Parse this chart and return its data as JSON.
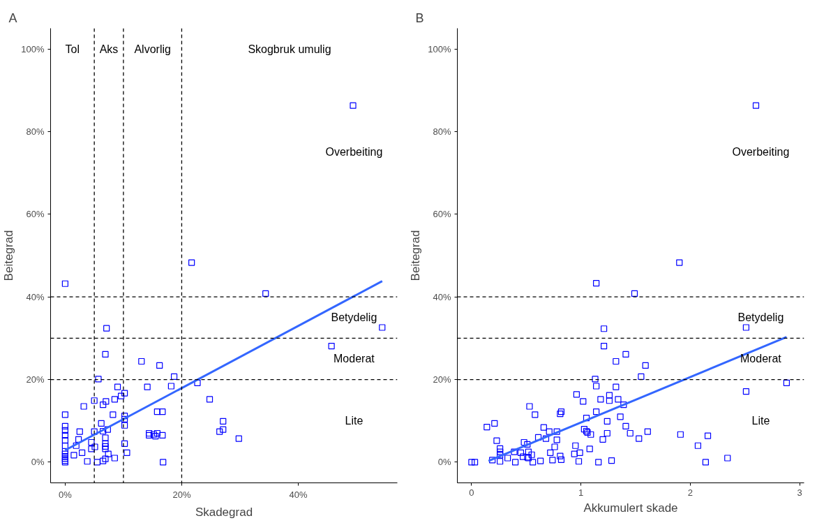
{
  "chart_data": [
    {
      "type": "scatter",
      "title": "A",
      "xlabel": "Skadegrad",
      "ylabel": "Beitegrad",
      "grid": false,
      "xlim": [
        -2.5,
        57
      ],
      "ylim": [
        -5,
        105
      ],
      "xticks": [
        {
          "value": 0,
          "label": "0%"
        },
        {
          "value": 20,
          "label": "20%"
        },
        {
          "value": 40,
          "label": "40%"
        }
      ],
      "yticks": [
        {
          "value": 0,
          "label": "0%"
        },
        {
          "value": 20,
          "label": "20%"
        },
        {
          "value": 40,
          "label": "40%"
        },
        {
          "value": 60,
          "label": "60%"
        },
        {
          "value": 80,
          "label": "80%"
        },
        {
          "value": 100,
          "label": "100%"
        }
      ],
      "series": [
        {
          "marker": "square",
          "color": "#0000ff",
          "x": [
            0,
            0,
            0,
            0,
            0,
            0,
            0,
            0,
            0,
            0,
            0,
            0,
            0,
            6.9,
            13.1,
            16.2,
            5.7,
            18.7,
            9.0,
            10.2,
            9.6,
            14.1,
            18.2,
            22.7,
            5.0,
            7.0,
            8.5,
            6.5,
            3.2,
            8.2,
            10.2,
            10.2,
            10.2,
            6.2,
            2.5,
            5.0,
            7.3,
            6.5,
            6.9,
            2.3,
            4.5,
            5.1,
            4.5,
            6.9,
            6.9,
            6.9,
            10.2,
            1.9,
            2.9,
            1.5,
            7.4,
            8.5,
            6.9,
            6.5,
            3.8,
            5.5,
            10.6,
            16.8,
            15.8,
            16.7,
            14.4,
            15.2,
            15.8,
            16.7,
            14.4,
            15.5,
            21.7,
            34.4,
            54.4,
            45.7,
            24.8,
            27.1,
            27.1,
            26.5,
            29.8,
            49.4,
            7.1
          ],
          "values": [
            43.2,
            11.5,
            8.7,
            7.7,
            6.5,
            5.3,
            4.0,
            2.6,
            2.0,
            1.4,
            0.9,
            0.4,
            0,
            26.1,
            24.4,
            23.4,
            20.1,
            20.7,
            18.2,
            16.7,
            16.0,
            18.2,
            18.4,
            19.2,
            14.9,
            14.7,
            15.2,
            13.9,
            13.5,
            11.5,
            11.2,
            10.4,
            8.9,
            9.4,
            7.4,
            7.4,
            7.9,
            7.5,
            5.9,
            5.5,
            4.8,
            3.7,
            3.2,
            4.5,
            3.8,
            3.2,
            4.5,
            4.0,
            2.3,
            1.7,
            2.0,
            1.0,
            0.8,
            0.3,
            0.2,
            0,
            2.3,
            0,
            12.2,
            12.2,
            6.5,
            6.7,
            7.0,
            6.5,
            7.0,
            6.3,
            48.3,
            40.8,
            32.6,
            28.1,
            15.2,
            9.9,
            7.9,
            7.4,
            5.7,
            86.3,
            32.4
          ]
        },
        {
          "type": "line",
          "color": "#3366ff",
          "x": [
            0,
            54.4
          ],
          "values": [
            2.9,
            43.8
          ]
        }
      ],
      "ref_lines": [
        {
          "axis": "x",
          "value": 5,
          "color": "#000000",
          "line_style": "dashed"
        },
        {
          "axis": "x",
          "value": 10,
          "color": "#000000",
          "line_style": "dashed"
        },
        {
          "axis": "x",
          "value": 20,
          "color": "#000000",
          "line_style": "dashed"
        },
        {
          "axis": "y",
          "value": 20,
          "color": "#000000",
          "line_style": "dashed"
        },
        {
          "axis": "y",
          "value": 30,
          "color": "#000000",
          "line_style": "dashed"
        },
        {
          "axis": "y",
          "value": 40,
          "color": "#000000",
          "line_style": "dashed"
        }
      ],
      "annotations": [
        "Tol",
        "Aks",
        "Alvorlig",
        "Skogbruk umulig",
        "Overbeiting",
        "Betydelig",
        "Moderat",
        "Lite"
      ]
    },
    {
      "type": "scatter",
      "title": "B",
      "xlabel": "Akkumulert skade",
      "ylabel": "Beitegrad",
      "grid": false,
      "xlim": [
        -0.13,
        3.04
      ],
      "ylim": [
        -5,
        105
      ],
      "xticks": [
        0,
        1,
        2,
        3
      ],
      "yticks": [
        {
          "value": 0,
          "label": "0%"
        },
        {
          "value": 20,
          "label": "20%"
        },
        {
          "value": 40,
          "label": "40%"
        },
        {
          "value": 60,
          "label": "60%"
        },
        {
          "value": 80,
          "label": "80%"
        },
        {
          "value": 100,
          "label": "100%"
        }
      ],
      "series": [
        {
          "marker": "square",
          "color": "#0000ff",
          "x": [
            1.14,
            1.49,
            1.21,
            1.21,
            1.41,
            1.32,
            1.59,
            1.55,
            1.13,
            1.14,
            1.32,
            0.96,
            1.02,
            1.26,
            1.26,
            1.18,
            1.34,
            1.39,
            1.14,
            1.36,
            1.05,
            1.24,
            0.53,
            0.58,
            0.82,
            0.81,
            0.14,
            0.21,
            0.66,
            1.03,
            1.05,
            1.06,
            1.09,
            1.24,
            1.41,
            1.45,
            1.53,
            1.61,
            1.2,
            0.71,
            0.78,
            0.61,
            0.68,
            0.78,
            0.23,
            0.48,
            0.51,
            0.76,
            0.95,
            0.99,
            1.08,
            0.94,
            0.72,
            0.81,
            0.39,
            0.45,
            0.52,
            0.26,
            0.26,
            0.26,
            0.19,
            0.26,
            0.33,
            0.4,
            0.47,
            0.52,
            0.56,
            0.63,
            0.74,
            0.82,
            0.98,
            1.16,
            1.28,
            0.0,
            0.03,
            0.55,
            0.51,
            2.51,
            2.88,
            2.51,
            1.91,
            2.16,
            2.07,
            2.14,
            2.34,
            2.6,
            1.9
          ],
          "values": [
            43.3,
            40.8,
            32.3,
            28.1,
            26.1,
            24.4,
            23.4,
            20.7,
            20.1,
            18.4,
            18.2,
            16.4,
            14.7,
            16.2,
            14.9,
            15.2,
            15.2,
            13.9,
            12.2,
            11.0,
            10.7,
            9.9,
            13.5,
            11.5,
            12.2,
            11.7,
            8.5,
            9.4,
            8.4,
            8.0,
            7.5,
            7.2,
            6.7,
            7.0,
            8.7,
            7.0,
            5.7,
            7.4,
            5.5,
            7.4,
            7.4,
            6.0,
            5.7,
            5.4,
            5.2,
            4.8,
            4.3,
            3.7,
            4.0,
            2.3,
            3.2,
            2.0,
            2.3,
            1.5,
            2.5,
            2.3,
            2.5,
            3.3,
            2.5,
            1.7,
            0.5,
            0.2,
            1.0,
            0,
            1.3,
            1.0,
            0,
            0.3,
            0.5,
            0.6,
            0.2,
            0,
            0.4,
            0,
            0,
            1.8,
            1.2,
            32.6,
            19.2,
            17.1,
            6.7,
            6.4,
            4.0,
            0,
            1.0,
            86.3,
            48.3
          ]
        },
        {
          "type": "line",
          "color": "#3366ff",
          "x": [
            0.155,
            2.88
          ],
          "values": [
            0.3,
            30.3
          ]
        }
      ],
      "ref_lines": [
        {
          "axis": "y",
          "value": 20,
          "color": "#000000",
          "line_style": "dashed"
        },
        {
          "axis": "y",
          "value": 30,
          "color": "#000000",
          "line_style": "dashed"
        },
        {
          "axis": "y",
          "value": 40,
          "color": "#000000",
          "line_style": "dashed"
        }
      ],
      "annotations": [
        "Overbeiting",
        "Betydelig",
        "Moderat",
        "Lite"
      ]
    }
  ]
}
